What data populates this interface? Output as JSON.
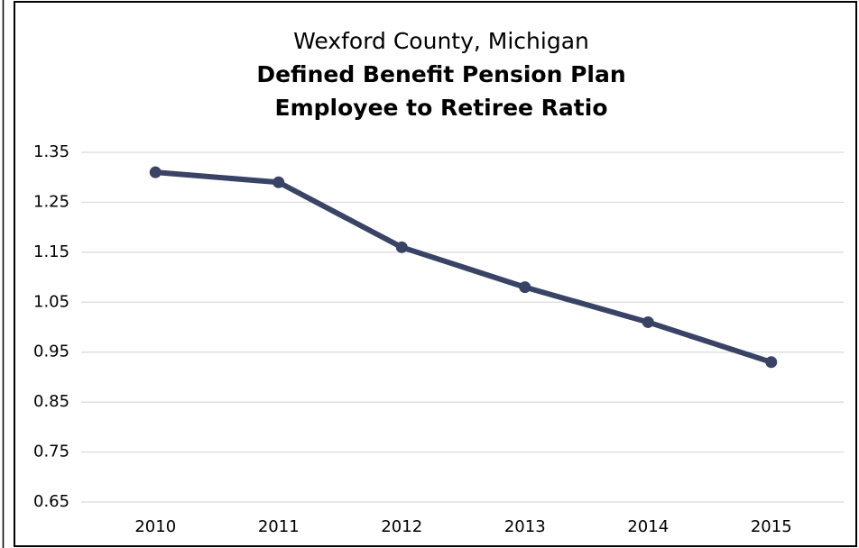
{
  "chart_data": {
    "type": "line",
    "title": [
      "Wexford County, Michigan",
      "Defined Benefit Pension Plan",
      "Employee to Retiree Ratio"
    ],
    "categories": [
      "2010",
      "2011",
      "2012",
      "2013",
      "2014",
      "2015"
    ],
    "values": [
      1.31,
      1.29,
      1.16,
      1.08,
      1.01,
      0.93
    ],
    "color": "#394366",
    "ylim": [
      0.65,
      1.35
    ],
    "yticks": [
      0.65,
      0.75,
      0.85,
      0.95,
      1.05,
      1.15,
      1.25,
      1.35
    ],
    "grid": true
  }
}
